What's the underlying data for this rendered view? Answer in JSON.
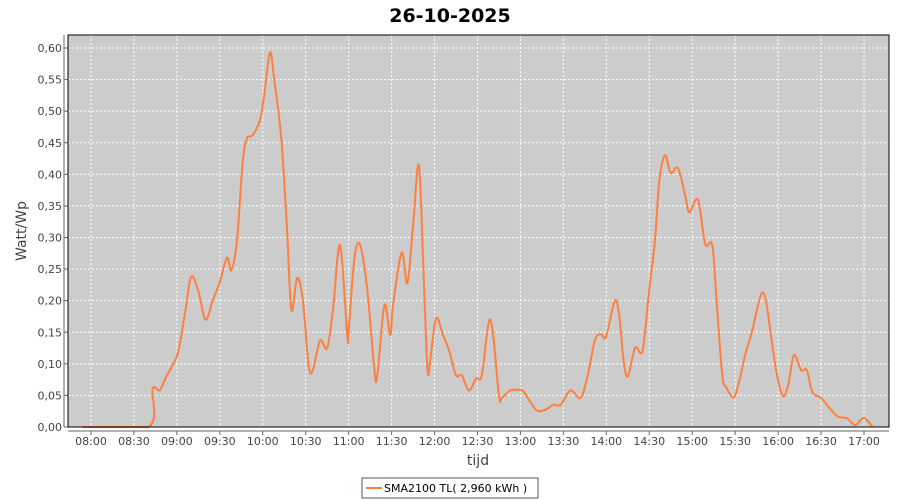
{
  "chart_data": {
    "type": "line",
    "title": "26-10-2025",
    "xlabel": "tijd",
    "ylabel": "Watt/Wp",
    "ylim": [
      0,
      0.6
    ],
    "xlim": [
      "07:45",
      "17:20"
    ],
    "yticks": [
      "0,00",
      "0,05",
      "0,10",
      "0,15",
      "0,20",
      "0,25",
      "0,30",
      "0,35",
      "0,40",
      "0,45",
      "0,50",
      "0,55",
      "0,60"
    ],
    "xticks": [
      "08:00",
      "08:30",
      "09:00",
      "09:30",
      "10:00",
      "10:30",
      "11:00",
      "11:30",
      "12:00",
      "12:30",
      "13:00",
      "13:30",
      "14:00",
      "14:30",
      "15:00",
      "15:30",
      "16:00",
      "16:30",
      "17:00"
    ],
    "grid": true,
    "legend_position": "bottom",
    "colors": {
      "plot_background": "#CCCCCC",
      "grid": "#FFFFFF",
      "series": "#FF7F3F"
    },
    "series": [
      {
        "name": "SMA2100 TL( 2,960 kWh )",
        "x": [
          "07:54",
          "08:40",
          "08:43",
          "08:48",
          "08:52",
          "08:57",
          "09:01",
          "09:06",
          "09:10",
          "09:15",
          "09:20",
          "09:25",
          "09:30",
          "09:35",
          "09:38",
          "09:42",
          "09:46",
          "09:49",
          "09:53",
          "09:58",
          "10:01",
          "10:05",
          "10:08",
          "10:13",
          "10:17",
          "10:20",
          "10:24",
          "10:28",
          "10:32",
          "10:35",
          "10:40",
          "10:45",
          "10:49",
          "10:54",
          "10:59",
          "11:00",
          "11:04",
          "11:08",
          "11:13",
          "11:18",
          "11:20",
          "11:25",
          "11:29",
          "11:31",
          "11:37",
          "11:41",
          "11:45",
          "11:49",
          "11:52",
          "11:55",
          "11:57",
          "12:01",
          "12:06",
          "12:10",
          "12:15",
          "12:19",
          "12:24",
          "12:29",
          "12:33",
          "12:39",
          "12:45",
          "12:47",
          "12:53",
          "13:01",
          "13:04",
          "13:11",
          "13:17",
          "13:23",
          "13:28",
          "13:35",
          "13:42",
          "13:47",
          "13:52",
          "13:56",
          "13:59",
          "14:01",
          "14:06",
          "14:09",
          "14:12",
          "14:15",
          "14:20",
          "14:24",
          "14:26",
          "14:30",
          "14:34",
          "14:37",
          "14:41",
          "14:45",
          "14:50",
          "14:55",
          "14:58",
          "15:04",
          "15:09",
          "15:14",
          "15:17",
          "15:21",
          "15:24",
          "15:29",
          "15:33",
          "15:37",
          "15:42",
          "15:46",
          "15:49",
          "15:52",
          "15:58",
          "16:03",
          "16:07",
          "16:11",
          "16:16",
          "16:20",
          "16:24",
          "16:30",
          "16:37",
          "16:42",
          "16:48",
          "16:54",
          "16:59",
          "17:02",
          "17:06"
        ],
        "values": [
          0,
          0,
          0.06,
          0.058,
          0.077,
          0.098,
          0.12,
          0.185,
          0.238,
          0.215,
          0.17,
          0.2,
          0.23,
          0.268,
          0.248,
          0.296,
          0.42,
          0.457,
          0.462,
          0.486,
          0.525,
          0.593,
          0.55,
          0.455,
          0.31,
          0.185,
          0.236,
          0.2,
          0.098,
          0.09,
          0.137,
          0.125,
          0.185,
          0.288,
          0.145,
          0.153,
          0.267,
          0.288,
          0.217,
          0.09,
          0.082,
          0.193,
          0.145,
          0.193,
          0.276,
          0.228,
          0.32,
          0.415,
          0.264,
          0.093,
          0.106,
          0.172,
          0.145,
          0.122,
          0.082,
          0.082,
          0.058,
          0.077,
          0.082,
          0.17,
          0.05,
          0.046,
          0.058,
          0.058,
          0.05,
          0.027,
          0.027,
          0.035,
          0.035,
          0.058,
          0.046,
          0.082,
          0.137,
          0.147,
          0.14,
          0.153,
          0.2,
          0.177,
          0.106,
          0.08,
          0.125,
          0.117,
          0.13,
          0.217,
          0.296,
          0.39,
          0.43,
          0.402,
          0.41,
          0.367,
          0.34,
          0.36,
          0.29,
          0.288,
          0.2,
          0.082,
          0.062,
          0.047,
          0.074,
          0.114,
          0.153,
          0.193,
          0.213,
          0.193,
          0.098,
          0.05,
          0.066,
          0.114,
          0.09,
          0.09,
          0.055,
          0.046,
          0.027,
          0.016,
          0.014,
          0.003,
          0.014,
          0.011,
          0
        ]
      }
    ]
  }
}
